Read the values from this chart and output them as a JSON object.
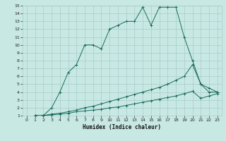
{
  "xlabel": "Humidex (Indice chaleur)",
  "bg_color": "#c8e8e4",
  "grid_color": "#a8ccc8",
  "line_color": "#1a6b5a",
  "xlim": [
    -0.5,
    23.5
  ],
  "ylim": [
    1,
    15
  ],
  "xticks": [
    0,
    1,
    2,
    3,
    4,
    5,
    6,
    7,
    8,
    9,
    10,
    11,
    12,
    13,
    14,
    15,
    16,
    17,
    18,
    19,
    20,
    21,
    22,
    23
  ],
  "yticks": [
    1,
    2,
    3,
    4,
    5,
    6,
    7,
    8,
    9,
    10,
    11,
    12,
    13,
    14,
    15
  ],
  "line1_x": [
    1,
    2,
    3,
    4,
    5,
    6,
    7,
    8,
    9,
    10,
    11,
    12,
    13,
    14,
    15,
    16,
    17,
    18,
    19,
    20,
    21,
    22,
    23
  ],
  "line1_y": [
    1,
    1,
    2,
    4,
    6.5,
    7.5,
    10,
    10,
    9.5,
    12,
    12.5,
    13,
    13,
    14.8,
    12.5,
    14.8,
    14.8,
    14.8,
    11,
    8,
    5,
    4,
    4
  ],
  "line2_x": [
    1,
    2,
    3,
    4,
    5,
    6,
    7,
    8,
    9,
    10,
    11,
    12,
    13,
    14,
    15,
    16,
    17,
    18,
    19,
    20,
    21,
    22,
    23
  ],
  "line2_y": [
    1,
    1,
    1.2,
    1.3,
    1.5,
    1.7,
    2.0,
    2.2,
    2.5,
    2.8,
    3.1,
    3.4,
    3.7,
    4.0,
    4.3,
    4.6,
    5.0,
    5.5,
    6.0,
    7.5,
    5.0,
    4.5,
    4.0
  ],
  "line3_x": [
    1,
    2,
    3,
    4,
    5,
    6,
    7,
    8,
    9,
    10,
    11,
    12,
    13,
    14,
    15,
    16,
    17,
    18,
    19,
    20,
    21,
    22,
    23
  ],
  "line3_y": [
    1,
    1,
    1.1,
    1.2,
    1.3,
    1.5,
    1.6,
    1.7,
    1.8,
    2.0,
    2.1,
    2.3,
    2.5,
    2.7,
    2.9,
    3.1,
    3.3,
    3.5,
    3.8,
    4.1,
    3.2,
    3.5,
    3.8
  ]
}
